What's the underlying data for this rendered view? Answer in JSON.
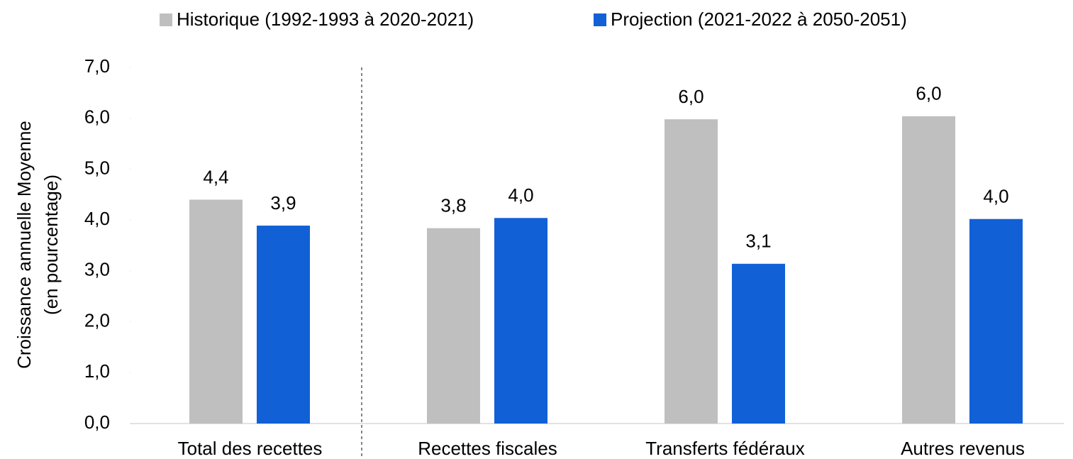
{
  "chart_data": {
    "type": "bar",
    "y_label": [
      "Croissance annuelle Moyenne",
      "(en pourcentage)"
    ],
    "categories": [
      "Total des recettes",
      "Recettes fiscales",
      "Transferts fédéraux",
      "Autres revenus"
    ],
    "series": [
      {
        "name": "Historique (1992-1993 à 2020-2021)",
        "color": "#bfbfbf",
        "values": [
          4.4,
          3.84,
          5.98,
          6.04
        ],
        "value_labels": [
          "4,4",
          "3,8",
          "6,0",
          "6,0"
        ]
      },
      {
        "name": "Projection (2021-2022 à 2050-2051)",
        "color": "#1160d6",
        "values": [
          3.89,
          4.04,
          3.14,
          4.02
        ],
        "value_labels": [
          "3,9",
          "4,0",
          "3,1",
          "4,0"
        ]
      }
    ],
    "ylim": [
      0,
      7
    ],
    "yticks": [
      {
        "value": 0,
        "label": "0,0"
      },
      {
        "value": 1,
        "label": "1,0"
      },
      {
        "value": 2,
        "label": "2,0"
      },
      {
        "value": 3,
        "label": "3,0"
      },
      {
        "value": 4,
        "label": "4,0"
      },
      {
        "value": 5,
        "label": "5,0"
      },
      {
        "value": 6,
        "label": "6,0"
      },
      {
        "value": 7,
        "label": "7,0"
      }
    ],
    "legend": "top"
  }
}
